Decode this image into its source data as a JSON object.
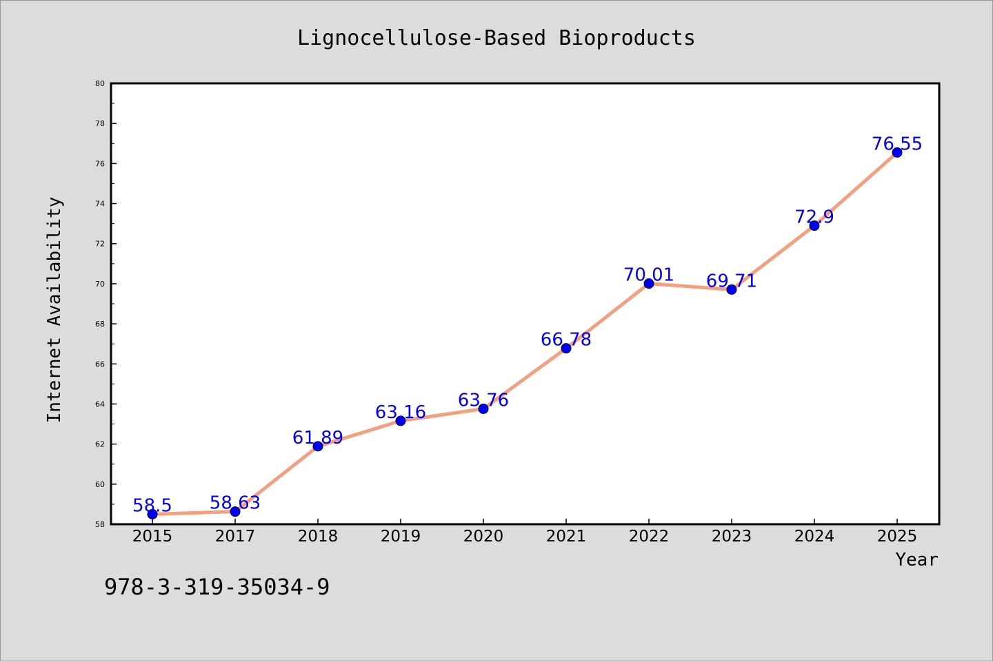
{
  "chart_data": {
    "type": "line",
    "title": "Lignocellulose-Based Bioproducts",
    "xlabel": "Year",
    "ylabel": "Internet Availability",
    "categories": [
      "2015",
      "2017",
      "2018",
      "2019",
      "2020",
      "2021",
      "2022",
      "2023",
      "2024",
      "2025"
    ],
    "series": [
      {
        "values": [
          58.5,
          58.63,
          61.89,
          63.16,
          63.76,
          66.78,
          70.01,
          69.71,
          72.9,
          76.55
        ],
        "data_labels": [
          "58.5",
          "58.63",
          "61.89",
          "63.16",
          "63.76",
          "66.78",
          "70.01",
          "69.71",
          "72.9",
          "76.55"
        ]
      }
    ],
    "ylim": [
      58,
      80
    ],
    "y_ticks": [
      58,
      60,
      62,
      64,
      66,
      68,
      70,
      72,
      74,
      76,
      78,
      80
    ],
    "grid": false,
    "legend": "none",
    "colors": {
      "line": "#f4a07f",
      "marker": "#0000ee",
      "data_label": "#0000ee",
      "background": "#dcdcdc",
      "plot_background": "#ffffff",
      "axis": "#000000"
    }
  },
  "footnote": "978-3-319-35034-9"
}
